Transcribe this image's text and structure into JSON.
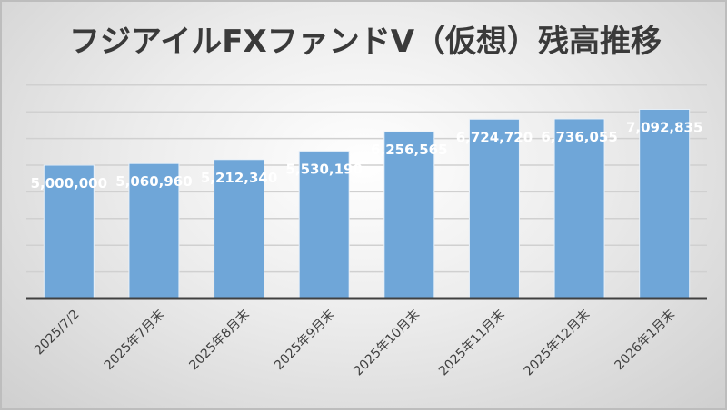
{
  "chart_data": {
    "type": "bar",
    "title": "フジアイルFXファンドⅤ（仮想）残高推移",
    "xlabel": "",
    "ylabel": "",
    "categories": [
      "2025/7/2",
      "2025年7月末",
      "2025年8月末",
      "2025年9月末",
      "2025年10月末",
      "2025年11月末",
      "2025年12月末",
      "2026年1月末"
    ],
    "values": [
      5000000,
      5060960,
      5212340,
      5530190,
      6256565,
      6724720,
      6736055,
      7092835
    ],
    "data_labels": [
      "5,000,000",
      "5,060,960",
      "5,212,340",
      "5,530,190",
      "6,256,565",
      "6,724,720",
      "6,736,055",
      "7,092,835"
    ],
    "ylim": [
      0,
      8000000
    ],
    "grid_step": 1000000,
    "grid": true,
    "legend": "none",
    "colors": {
      "bar": "#6fa6d8",
      "axis": "#404040",
      "grid": "#d0d0d0",
      "label": "#ffffff",
      "title": "#3a3a3a"
    }
  }
}
